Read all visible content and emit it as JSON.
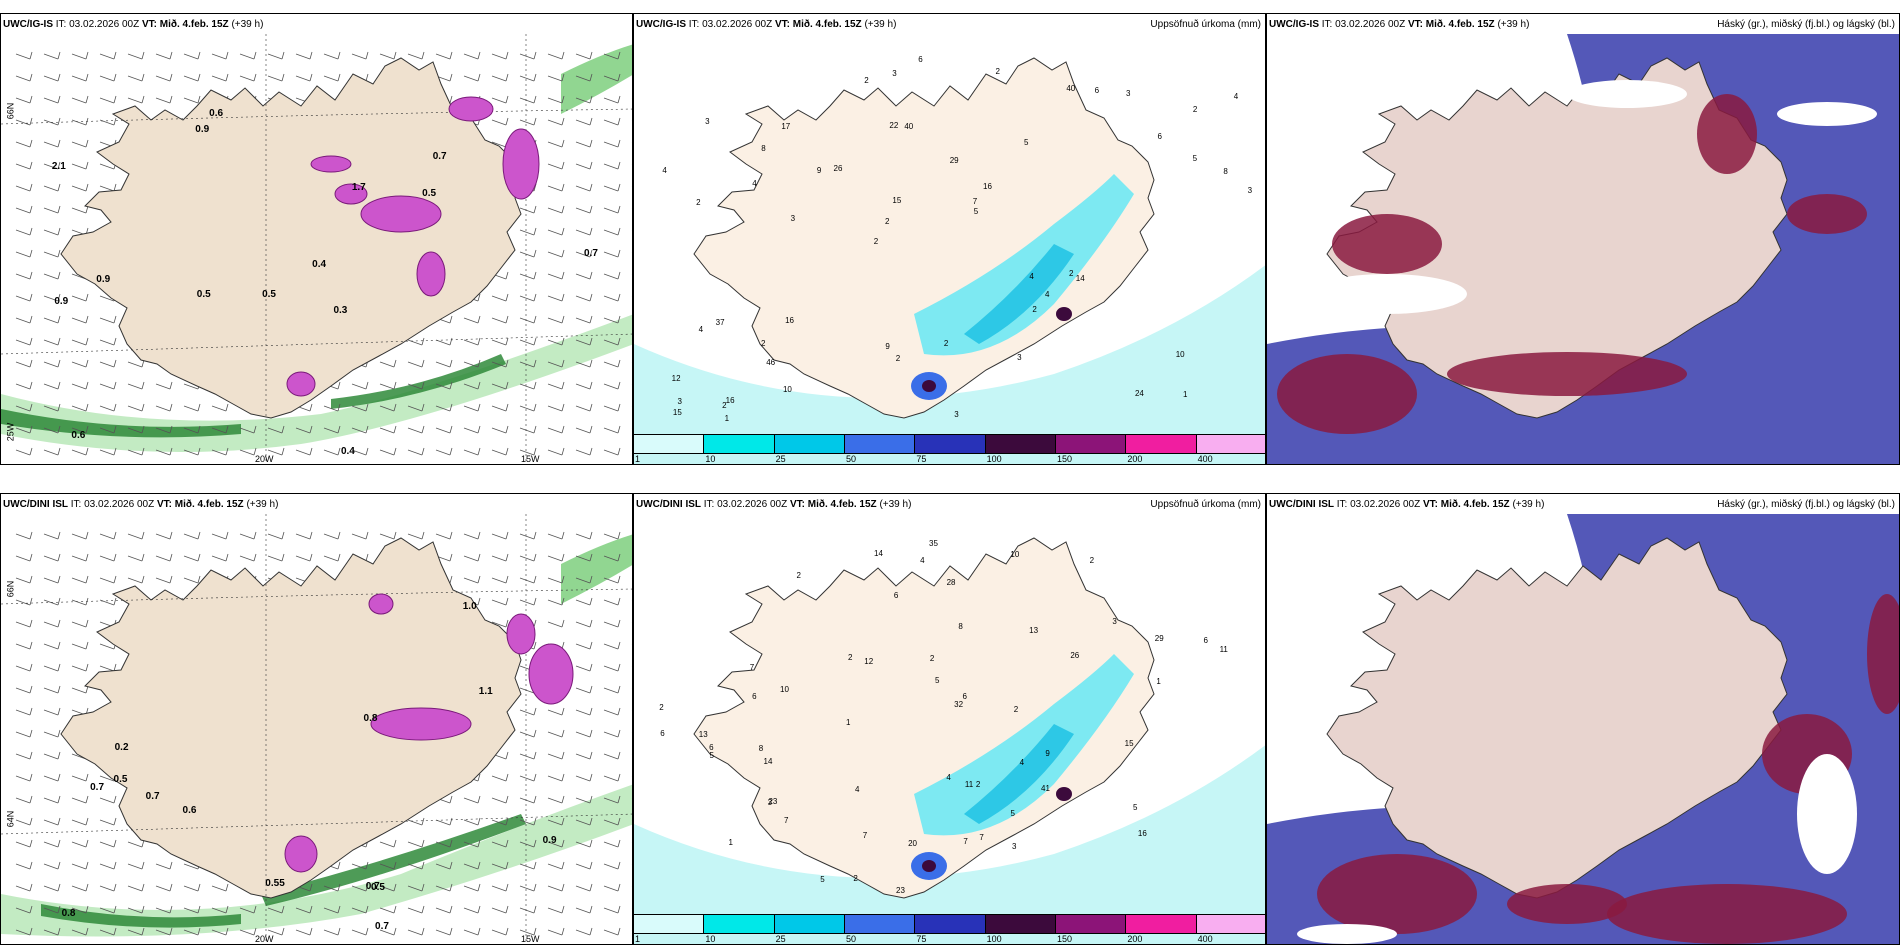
{
  "rows": [
    {
      "model_label": "UWC/IG-IS",
      "it_label": "IT:",
      "it_value": "03.02.2026 00Z",
      "vt_label": "VT:",
      "vt_value": "Mið. 4.feb. 15Z",
      "lead": "(+39 h)"
    },
    {
      "model_label": "UWC/DINI ISL",
      "it_label": "IT:",
      "it_value": "03.02.2026 00Z",
      "vt_label": "VT:",
      "vt_value": "Mið. 4.feb. 15Z",
      "lead": "(+39 h)"
    }
  ],
  "precip_panel": {
    "title": "Uppsöfnuð úrkoma (mm)"
  },
  "cloud_panel": {
    "title": "Háský (gr.), miðský (fj.bl.) og lágský (bl.)"
  },
  "axis_labels": {
    "lon_20w": "20W",
    "lon_15w": "15W",
    "lat_66n": "66N",
    "lat_64n": "64N",
    "lat_25w": "25W"
  },
  "colorbar": {
    "ticks": [
      "1",
      "10",
      "25",
      "50",
      "75",
      "100",
      "150",
      "200",
      "400"
    ],
    "colors": [
      "#d9fbfb",
      "#00e8e8",
      "#00c8e8",
      "#3a6ee8",
      "#2832b8",
      "#3c0a3c",
      "#8c1478",
      "#f01ea0",
      "#f8aef0"
    ]
  },
  "precip_values_top": [
    "1",
    "2",
    "2",
    "2",
    "5",
    "16",
    "22",
    "29",
    "37",
    "26",
    "12",
    "46",
    "40",
    "16",
    "14",
    "3",
    "3",
    "3",
    "4",
    "5",
    "2",
    "9",
    "15",
    "17",
    "40",
    "16",
    "24",
    "10",
    "2",
    "3",
    "9",
    "4",
    "2",
    "10",
    "8",
    "7",
    "3",
    "2",
    "5",
    "4",
    "6",
    "4",
    "4",
    "3",
    "2",
    "1",
    "15",
    "2",
    "3",
    "6",
    "3",
    "4",
    "8",
    "6",
    "2",
    "2",
    "2"
  ],
  "precip_values_bottom": [
    "1",
    "2",
    "2",
    "3",
    "11",
    "10",
    "14",
    "23",
    "29",
    "26",
    "13",
    "35",
    "41",
    "32",
    "23",
    "14",
    "16",
    "2",
    "3",
    "2",
    "3",
    "4",
    "6",
    "6",
    "5",
    "7",
    "6",
    "10",
    "8",
    "9",
    "7",
    "7",
    "7",
    "4",
    "5",
    "5",
    "6",
    "2",
    "13",
    "15",
    "11",
    "28",
    "20",
    "8",
    "6",
    "6",
    "4",
    "7",
    "4",
    "5",
    "12",
    "5",
    "2",
    "1",
    "1",
    "2",
    "2"
  ],
  "wind_values_top": [
    "0.6",
    "0.7",
    "0.7",
    "0.5",
    "0.3",
    "0.9",
    "2.1",
    "0.5",
    "0.9",
    "1.7",
    "0.4",
    "0.6",
    "0.9",
    "0.5",
    "0.4"
  ],
  "wind_values_bottom": [
    "0.5",
    "0.6",
    "0.7",
    "0.7",
    "0.2",
    "0.7",
    "0.8",
    "0.8",
    "0.5",
    "1.1",
    "0.9",
    "1.0",
    "0.7",
    "0.55"
  ]
}
